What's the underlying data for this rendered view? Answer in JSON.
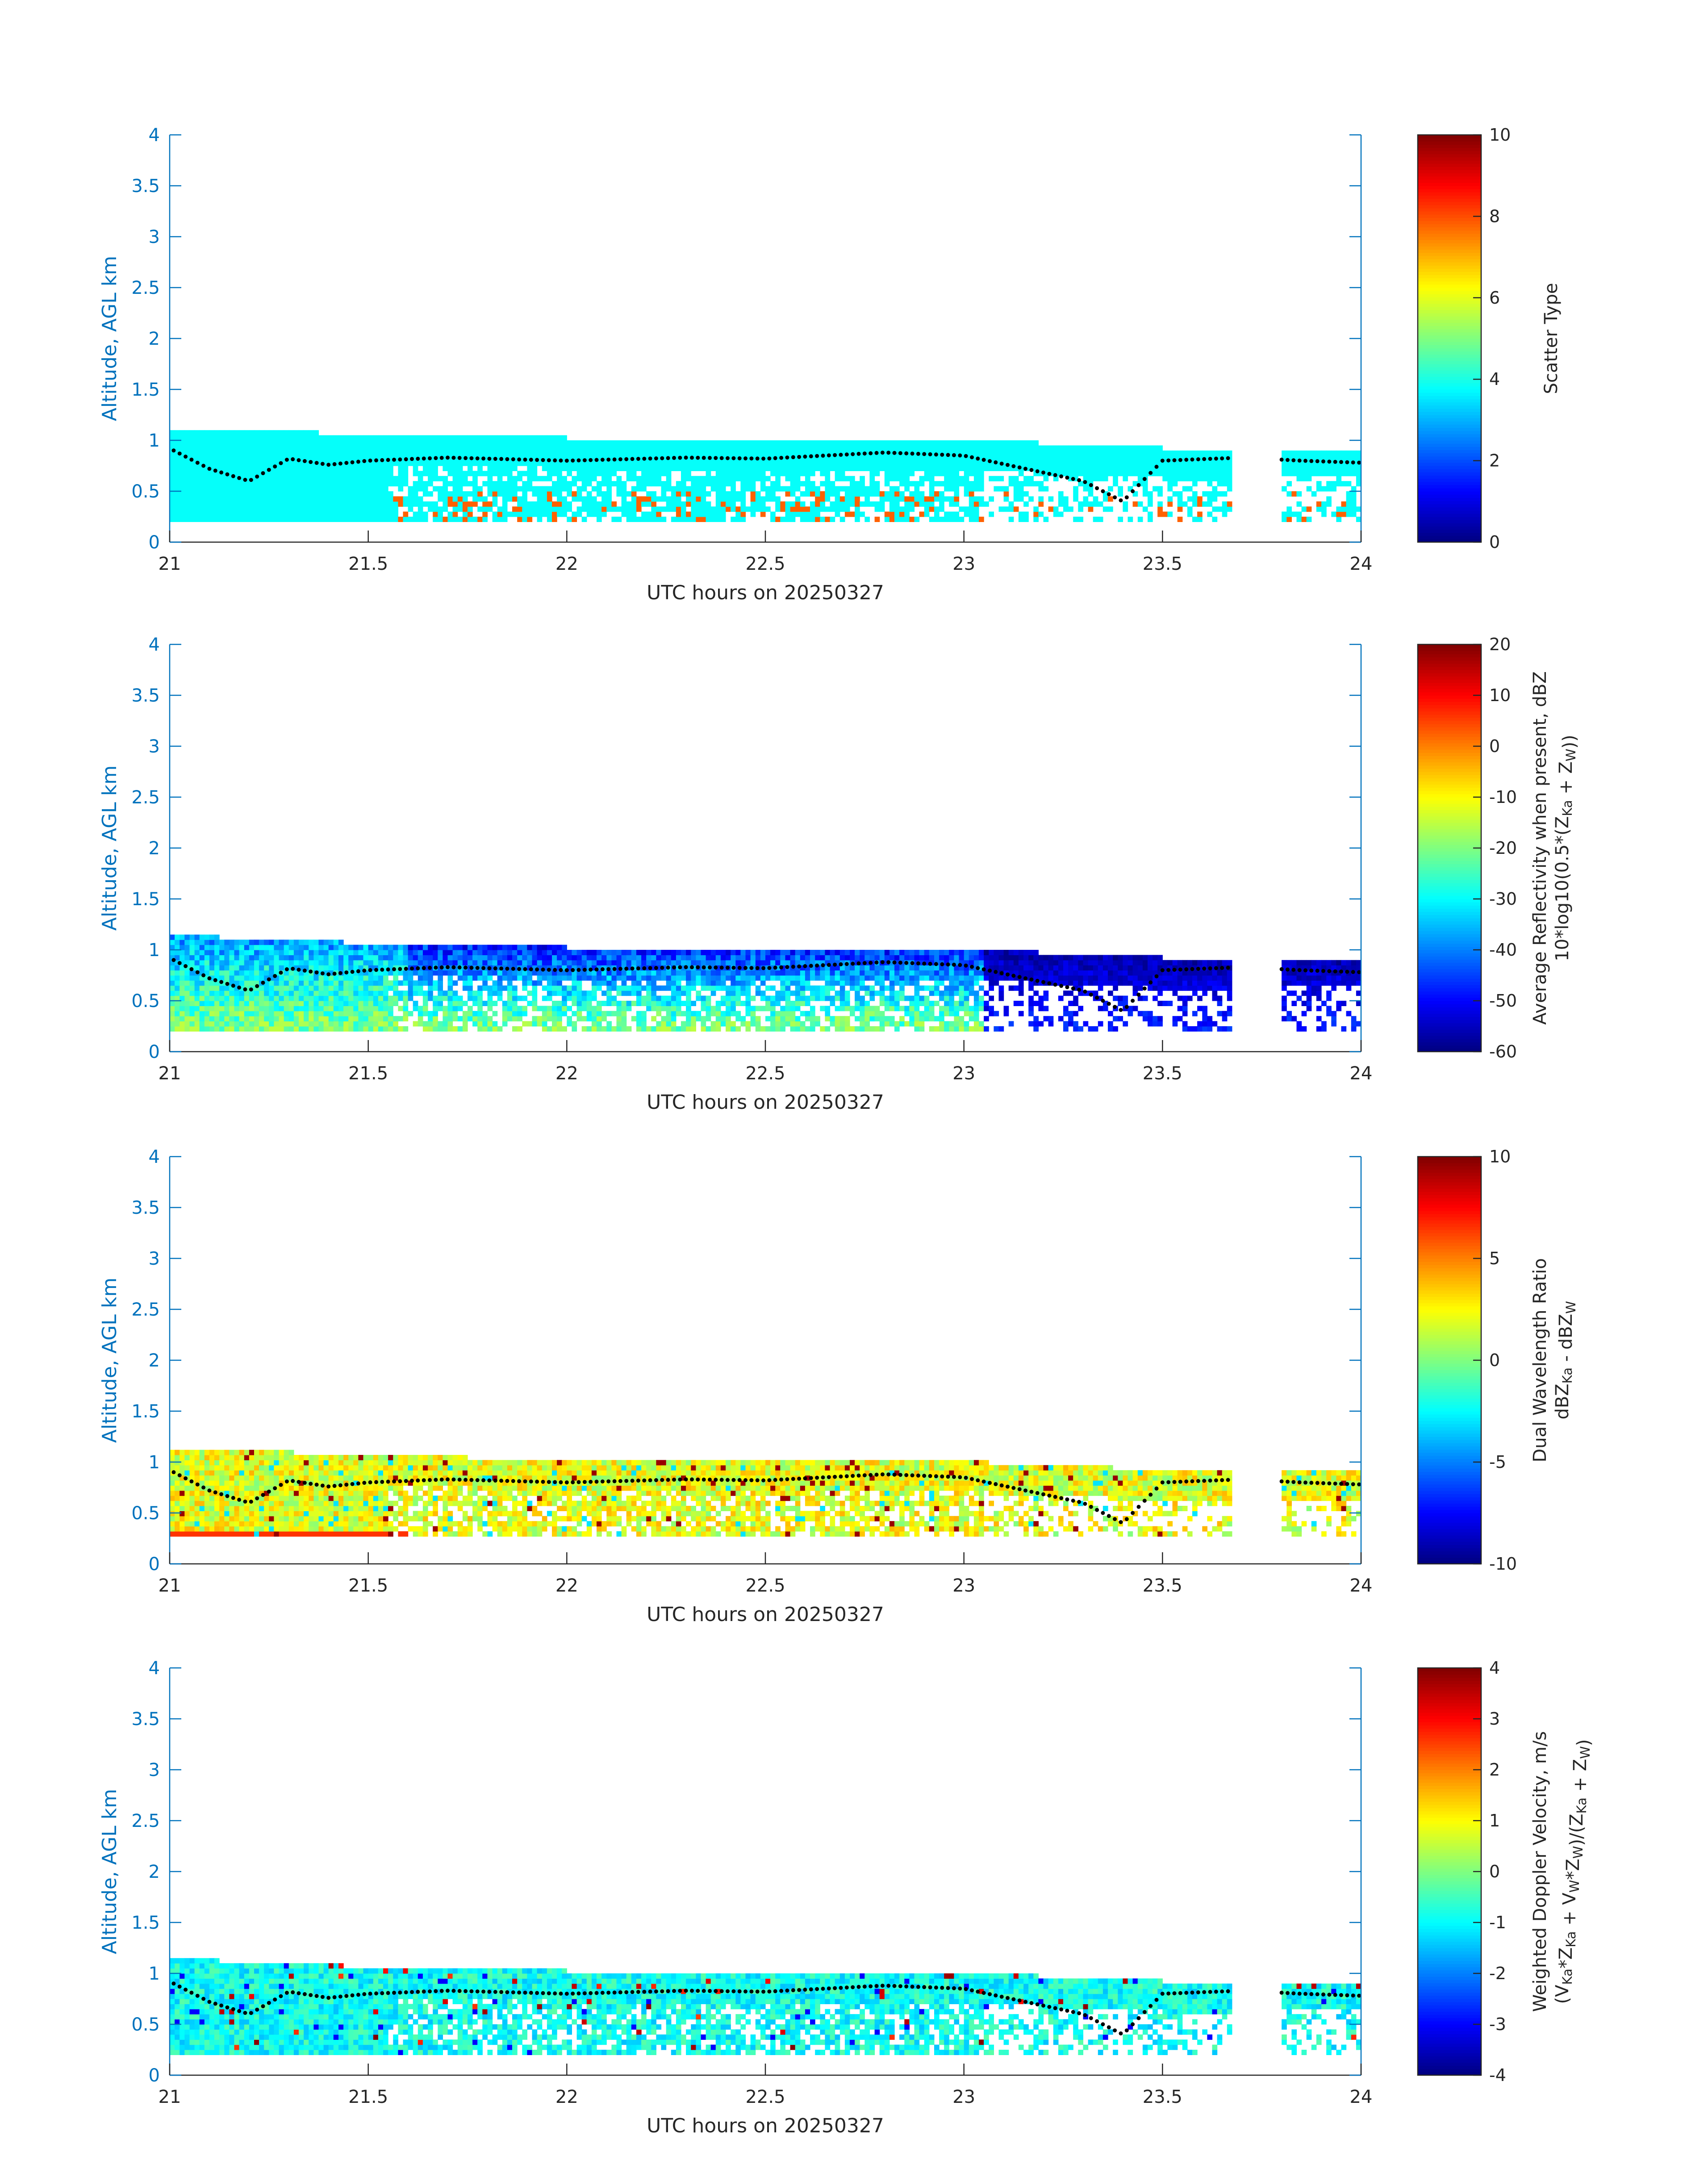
{
  "chart_data": [
    {
      "type": "heatmap",
      "xlabel": "UTC hours on 20250327",
      "ylabel": "Altitude, AGL km",
      "xlim": [
        21,
        24
      ],
      "ylim": [
        0,
        4
      ],
      "xticks": [
        "21",
        "21.5",
        "22",
        "22.5",
        "23",
        "23.5",
        "24"
      ],
      "yticks": [
        "0",
        "0.5",
        "1",
        "1.5",
        "2",
        "2.5",
        "3",
        "3.5",
        "4"
      ],
      "colorbar_label_lines": [
        "Scatter Type"
      ],
      "colorbar_range": [
        0,
        10
      ],
      "colorbar_ticks": [
        "0",
        "2",
        "4",
        "6",
        "8",
        "10"
      ],
      "colormap": "jet",
      "cloud_base_km": 0.2,
      "cloud_top_km": [
        [
          21.0,
          1.08
        ],
        [
          21.5,
          1.04
        ],
        [
          22.0,
          1.0
        ],
        [
          22.5,
          1.0
        ],
        [
          23.0,
          0.98
        ],
        [
          23.5,
          0.9
        ],
        [
          23.7,
          0.88
        ],
        [
          23.8,
          0.9
        ],
        [
          24.0,
          0.9
        ]
      ],
      "dominant_value": 3.8,
      "secondary_value": 7.8,
      "gaps_hours": [
        [
          23.68,
          23.8
        ]
      ],
      "cloud_top_marker_km": [
        [
          21.0,
          0.92
        ],
        [
          21.1,
          0.72
        ],
        [
          21.2,
          0.6
        ],
        [
          21.3,
          0.82
        ],
        [
          21.4,
          0.76
        ],
        [
          21.5,
          0.8
        ],
        [
          21.7,
          0.83
        ],
        [
          22.0,
          0.8
        ],
        [
          22.3,
          0.83
        ],
        [
          22.5,
          0.82
        ],
        [
          22.8,
          0.88
        ],
        [
          23.0,
          0.85
        ],
        [
          23.3,
          0.6
        ],
        [
          23.4,
          0.4
        ],
        [
          23.5,
          0.8
        ],
        [
          23.7,
          0.83
        ],
        [
          23.85,
          0.8
        ],
        [
          24.0,
          0.78
        ]
      ]
    },
    {
      "type": "heatmap",
      "xlabel": "UTC hours on 20250327",
      "ylabel": "Altitude, AGL km",
      "xlim": [
        21,
        24
      ],
      "ylim": [
        0,
        4
      ],
      "xticks": [
        "21",
        "21.5",
        "22",
        "22.5",
        "23",
        "23.5",
        "24"
      ],
      "yticks": [
        "0",
        "0.5",
        "1",
        "1.5",
        "2",
        "2.5",
        "3",
        "3.5",
        "4"
      ],
      "colorbar_label_lines": [
        "Average Reflectivity when present, dBZ",
        "10*log10(0.5*(Z{Ka} + Z{W}))"
      ],
      "colorbar_range": [
        -60,
        20
      ],
      "colorbar_ticks": [
        "-60",
        "-50",
        "-40",
        "-30",
        "-20",
        "-10",
        "0",
        "10",
        "20"
      ],
      "colormap": "jet",
      "cloud_base_km": 0.2,
      "cloud_top_km": [
        [
          21.0,
          1.12
        ],
        [
          21.5,
          1.04
        ],
        [
          22.0,
          1.0
        ],
        [
          22.5,
          1.0
        ],
        [
          23.0,
          0.98
        ],
        [
          23.5,
          0.9
        ],
        [
          23.7,
          0.88
        ],
        [
          23.8,
          0.9
        ],
        [
          24.0,
          0.9
        ]
      ],
      "value_range_early": [
        -45,
        -15
      ],
      "value_range_late": [
        -60,
        -45
      ],
      "gaps_hours": [
        [
          23.68,
          23.8
        ]
      ],
      "cloud_top_marker_km": [
        [
          21.0,
          0.92
        ],
        [
          21.1,
          0.72
        ],
        [
          21.2,
          0.6
        ],
        [
          21.3,
          0.82
        ],
        [
          21.4,
          0.76
        ],
        [
          21.5,
          0.8
        ],
        [
          21.7,
          0.83
        ],
        [
          22.0,
          0.8
        ],
        [
          22.3,
          0.83
        ],
        [
          22.5,
          0.82
        ],
        [
          22.8,
          0.88
        ],
        [
          23.0,
          0.85
        ],
        [
          23.3,
          0.6
        ],
        [
          23.4,
          0.4
        ],
        [
          23.5,
          0.8
        ],
        [
          23.7,
          0.83
        ],
        [
          23.85,
          0.8
        ],
        [
          24.0,
          0.78
        ]
      ]
    },
    {
      "type": "heatmap",
      "xlabel": "UTC hours on 20250327",
      "ylabel": "Altitude, AGL km",
      "xlim": [
        21,
        24
      ],
      "ylim": [
        0,
        4
      ],
      "xticks": [
        "21",
        "21.5",
        "22",
        "22.5",
        "23",
        "23.5",
        "24"
      ],
      "yticks": [
        "0",
        "0.5",
        "1",
        "1.5",
        "2",
        "2.5",
        "3",
        "3.5",
        "4"
      ],
      "colorbar_label_lines": [
        "Dual Wavelength Ratio",
        "dBZ{Ka} - dBZ{W}"
      ],
      "colorbar_range": [
        -10,
        10
      ],
      "colorbar_ticks": [
        "-10",
        "-5",
        "0",
        "5",
        "10"
      ],
      "colormap": "jet",
      "cloud_base_km": 0.27,
      "cloud_top_km": [
        [
          21.0,
          1.12
        ],
        [
          21.5,
          1.04
        ],
        [
          22.0,
          1.0
        ],
        [
          22.5,
          1.0
        ],
        [
          23.0,
          0.98
        ],
        [
          23.5,
          0.9
        ],
        [
          23.7,
          0.88
        ],
        [
          23.8,
          0.9
        ],
        [
          24.0,
          0.9
        ]
      ],
      "value_range": [
        0,
        4
      ],
      "gaps_hours": [
        [
          23.68,
          23.8
        ]
      ],
      "cloud_top_marker_km": [
        [
          21.0,
          0.92
        ],
        [
          21.1,
          0.72
        ],
        [
          21.2,
          0.6
        ],
        [
          21.3,
          0.82
        ],
        [
          21.4,
          0.76
        ],
        [
          21.5,
          0.8
        ],
        [
          21.7,
          0.83
        ],
        [
          22.0,
          0.8
        ],
        [
          22.3,
          0.83
        ],
        [
          22.5,
          0.82
        ],
        [
          22.8,
          0.88
        ],
        [
          23.0,
          0.85
        ],
        [
          23.3,
          0.6
        ],
        [
          23.4,
          0.4
        ],
        [
          23.5,
          0.8
        ],
        [
          23.7,
          0.83
        ],
        [
          23.85,
          0.8
        ],
        [
          24.0,
          0.78
        ]
      ]
    },
    {
      "type": "heatmap",
      "xlabel": "UTC hours on 20250327",
      "ylabel": "Altitude, AGL km",
      "xlim": [
        21,
        24
      ],
      "ylim": [
        0,
        4
      ],
      "xticks": [
        "21",
        "21.5",
        "22",
        "22.5",
        "23",
        "23.5",
        "24"
      ],
      "yticks": [
        "0",
        "0.5",
        "1",
        "1.5",
        "2",
        "2.5",
        "3",
        "3.5",
        "4"
      ],
      "colorbar_label_lines": [
        "Weighted Doppler Velocity, m/s",
        "(V{Ka}*Z{Ka} + V{W}*Z{W})/(Z{Ka} + Z{W})"
      ],
      "colorbar_range": [
        -4,
        4
      ],
      "colorbar_ticks": [
        "-4",
        "-3",
        "-2",
        "-1",
        "0",
        "1",
        "2",
        "3",
        "4"
      ],
      "colormap": "jet",
      "cloud_base_km": 0.2,
      "cloud_top_km": [
        [
          21.0,
          1.12
        ],
        [
          21.5,
          1.04
        ],
        [
          22.0,
          1.0
        ],
        [
          22.5,
          1.0
        ],
        [
          23.0,
          0.98
        ],
        [
          23.5,
          0.9
        ],
        [
          23.7,
          0.88
        ],
        [
          23.8,
          0.9
        ],
        [
          24.0,
          0.9
        ]
      ],
      "value_range": [
        -1.5,
        -0.3
      ],
      "gaps_hours": [
        [
          23.68,
          23.8
        ]
      ],
      "cloud_top_marker_km": [
        [
          21.0,
          0.92
        ],
        [
          21.1,
          0.72
        ],
        [
          21.2,
          0.6
        ],
        [
          21.3,
          0.82
        ],
        [
          21.4,
          0.76
        ],
        [
          21.5,
          0.8
        ],
        [
          21.7,
          0.83
        ],
        [
          22.0,
          0.8
        ],
        [
          22.3,
          0.83
        ],
        [
          22.5,
          0.82
        ],
        [
          22.8,
          0.88
        ],
        [
          23.0,
          0.85
        ],
        [
          23.3,
          0.6
        ],
        [
          23.4,
          0.4
        ],
        [
          23.5,
          0.8
        ],
        [
          23.7,
          0.83
        ],
        [
          23.85,
          0.8
        ],
        [
          24.0,
          0.78
        ]
      ]
    }
  ],
  "colors": {
    "axis": "#0072BD",
    "text": "#262626",
    "marker": "#000000"
  }
}
